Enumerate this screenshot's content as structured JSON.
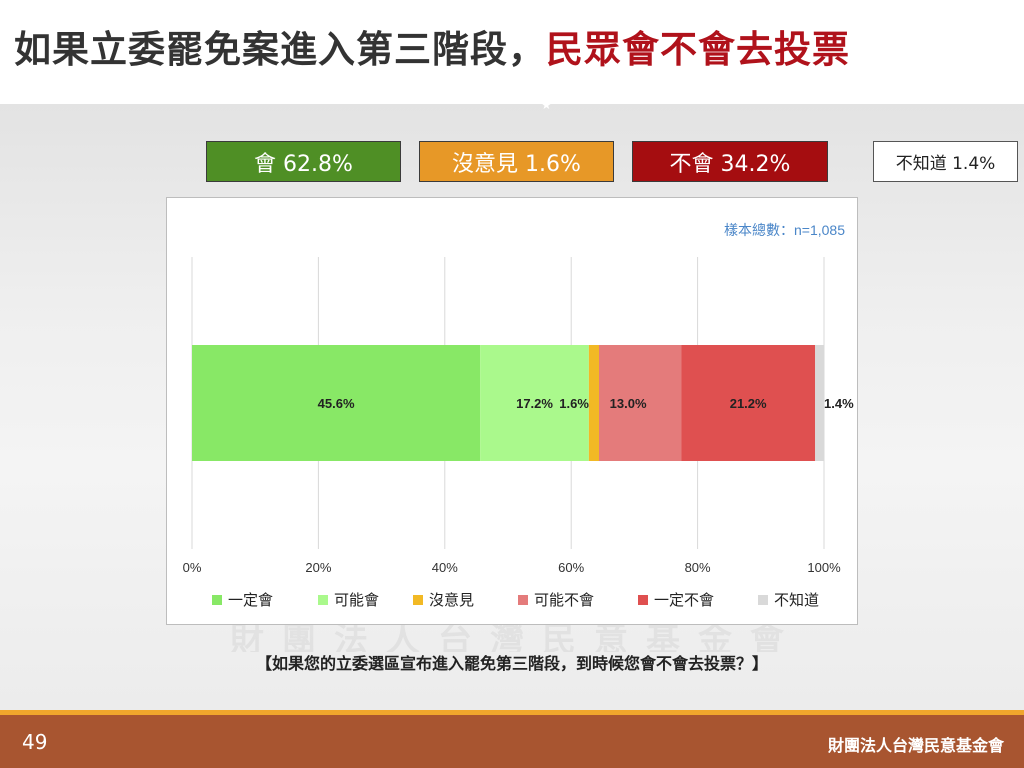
{
  "header": {
    "title_part1": "如果立委罷免案進入第三階段",
    "title_sep": "，",
    "title_part2": "民眾會不會去投票"
  },
  "summary": {
    "yes": "會 62.8%",
    "no_opinion": "沒意見 1.6%",
    "no": "不會 34.2%",
    "dont_know": "不知道 1.4%"
  },
  "chart_data": {
    "type": "bar",
    "orientation": "horizontal",
    "stacked": true,
    "annotation": "樣本總數：n=1,085",
    "categories": [
      ""
    ],
    "series": [
      {
        "name": "一定會",
        "values": [
          45.6
        ],
        "label": "45.6%",
        "color": "#88e866"
      },
      {
        "name": "可能會",
        "values": [
          17.2
        ],
        "label": "17.2%",
        "color": "#aaf98c"
      },
      {
        "name": "沒意見",
        "values": [
          1.6
        ],
        "label": "1.6%",
        "color": "#f2b925"
      },
      {
        "name": "可能不會",
        "values": [
          13.0
        ],
        "label": "13.0%",
        "color": "#e47b7b"
      },
      {
        "name": "一定不會",
        "values": [
          21.2
        ],
        "label": "21.2%",
        "color": "#df5050"
      },
      {
        "name": "不知道",
        "values": [
          1.4
        ],
        "label": "1.4%",
        "color": "#d9d9d9"
      }
    ],
    "x_ticks": [
      "0%",
      "20%",
      "40%",
      "60%",
      "80%",
      "100%"
    ],
    "xlim": [
      0,
      100
    ],
    "grid": true,
    "legend_position": "bottom"
  },
  "question": "【如果您的立委選區宣布進入罷免第三階段，到時候您會不會去投票？】",
  "footer": {
    "page_number": "49",
    "organization": "財團法人台灣民意基金會"
  },
  "watermark": "財團法人台灣民意基金會"
}
